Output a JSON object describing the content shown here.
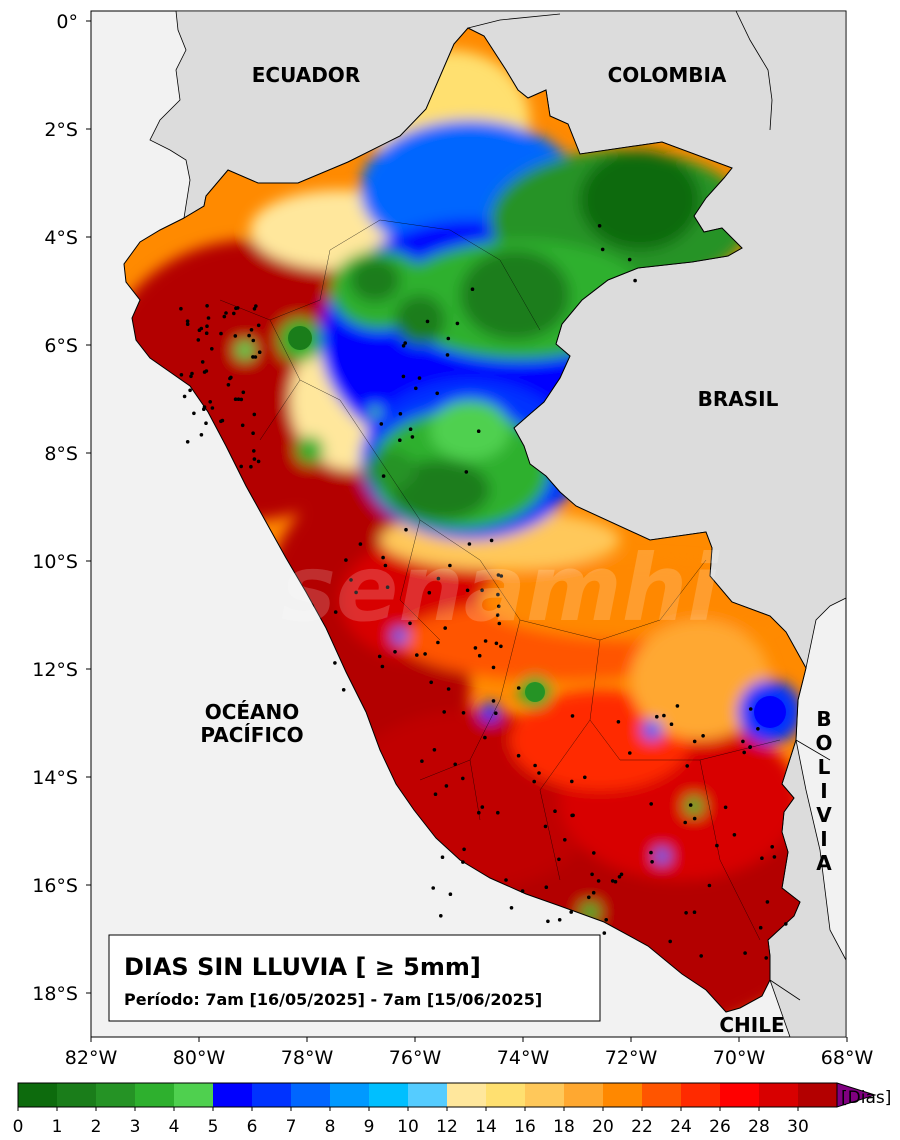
{
  "map": {
    "title": "DIAS SIN LLUVIA [ ≥ 5mm]",
    "period": "Período: 7am [16/05/2025] - 7am [15/06/2025]",
    "country_labels": [
      "ECUADOR",
      "COLOMBIA",
      "BRASIL",
      "CHILE"
    ],
    "bolivia_letters": [
      "B",
      "O",
      "L",
      "I",
      "V",
      "I",
      "A"
    ],
    "ocean_label": [
      "OCÉANO",
      "PACÍFICO"
    ],
    "lat_ticks": [
      "0°",
      "2°S",
      "4°S",
      "6°S",
      "8°S",
      "10°S",
      "12°S",
      "14°S",
      "16°S",
      "18°S"
    ],
    "lon_ticks": [
      "82°W",
      "80°W",
      "78°W",
      "76°W",
      "74°W",
      "72°W",
      "70°W",
      "68°W"
    ],
    "watermark": "senamhi",
    "colors": {
      "land_bg": "#dcdcdc",
      "ocean_bg": "#f2f2f2",
      "dry_max": "#b30000"
    }
  },
  "colorbar": {
    "unit": "[Dias]",
    "tick_labels": [
      "0",
      "1",
      "2",
      "3",
      "4",
      "5",
      "6",
      "7",
      "8",
      "9",
      "10",
      "12",
      "14",
      "16",
      "18",
      "20",
      "22",
      "24",
      "26",
      "28",
      "30"
    ],
    "colors": [
      "#0d6b0d",
      "#1a7d1a",
      "#259325",
      "#2eb02e",
      "#4fd04f",
      "#0000ff",
      "#0033ff",
      "#0066ff",
      "#0099ff",
      "#00bfff",
      "#55ccff",
      "#ffe79c",
      "#ffe070",
      "#ffc85a",
      "#ffa830",
      "#ff8800",
      "#ff5500",
      "#ff2a00",
      "#ff0000",
      "#d80000",
      "#b30000"
    ],
    "extend_color": "#800080"
  }
}
